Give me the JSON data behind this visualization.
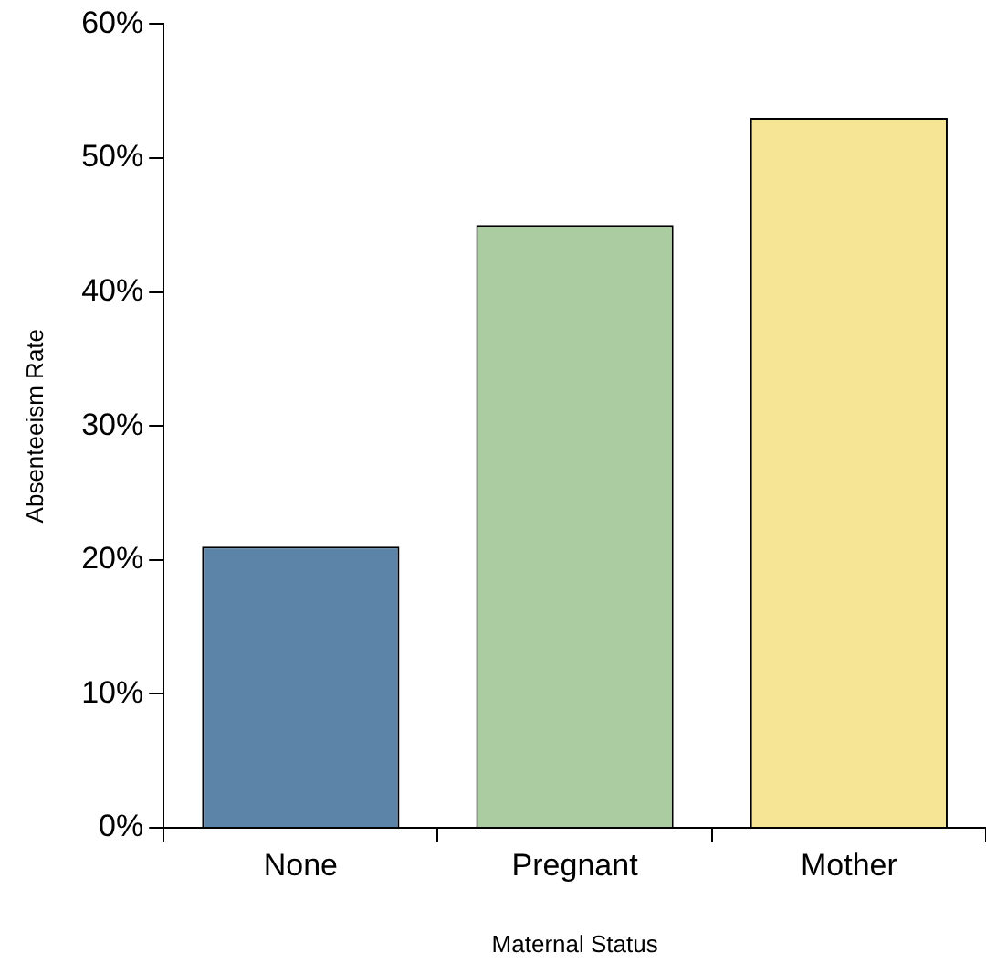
{
  "chart_data": {
    "type": "bar",
    "xlabel": "Maternal Status",
    "ylabel": "Absenteeism Rate",
    "categories": [
      "None",
      "Pregnant",
      "Mother"
    ],
    "values": [
      21,
      45,
      53
    ],
    "colors": [
      "#5b84a8",
      "#abcba0",
      "#f5e595"
    ],
    "ylim": [
      0,
      60
    ],
    "yticks": [
      {
        "value": 0,
        "label": "0%"
      },
      {
        "value": 10,
        "label": "10%"
      },
      {
        "value": 20,
        "label": "20%"
      },
      {
        "value": 30,
        "label": "30%"
      },
      {
        "value": 40,
        "label": "40%"
      },
      {
        "value": 50,
        "label": "50%"
      },
      {
        "value": 60,
        "label": "60%"
      }
    ],
    "grid": false,
    "legend": false
  }
}
